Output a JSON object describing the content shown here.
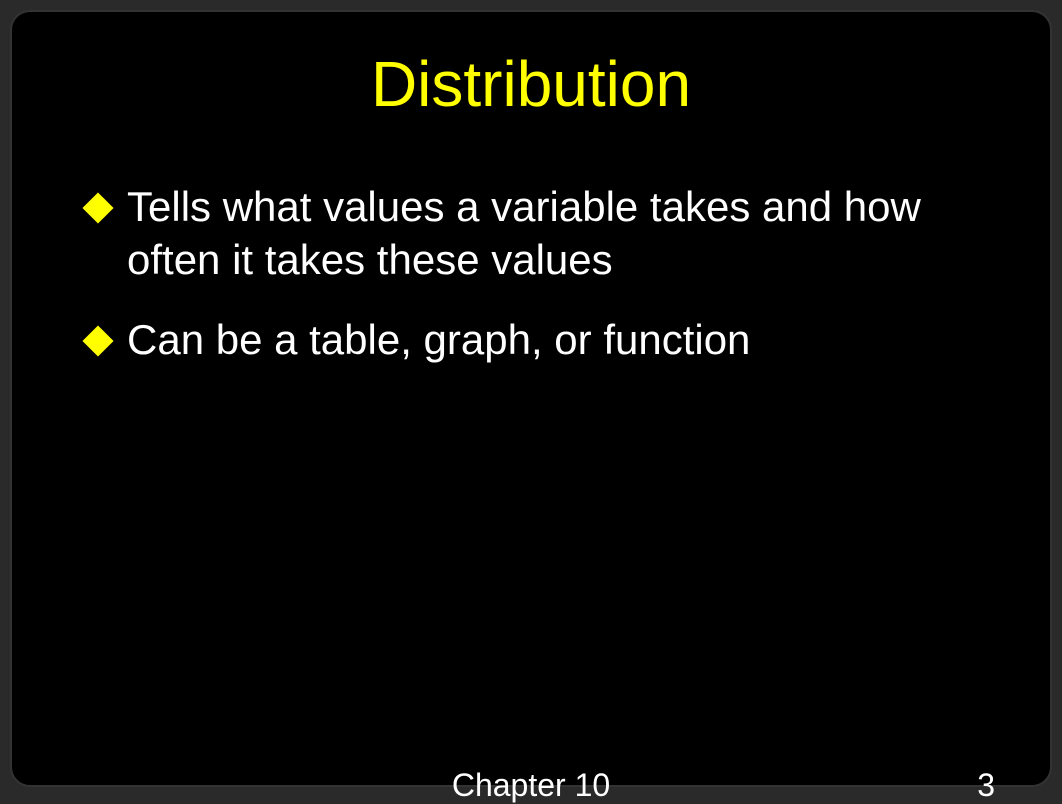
{
  "slide": {
    "title": "Distribution",
    "bullets": [
      "Tells what values a variable takes and how often it takes these values",
      "Can be a table, graph, or function"
    ],
    "footer": {
      "chapter": "Chapter 10",
      "page": "3"
    },
    "colors": {
      "background": "#000000",
      "title": "#ffff00",
      "bullet_marker": "#ffff00",
      "text": "#ffffff"
    },
    "typography": {
      "title_fontsize": 64,
      "body_fontsize": 42,
      "footer_fontsize": 32,
      "font_family": "Arial"
    }
  }
}
